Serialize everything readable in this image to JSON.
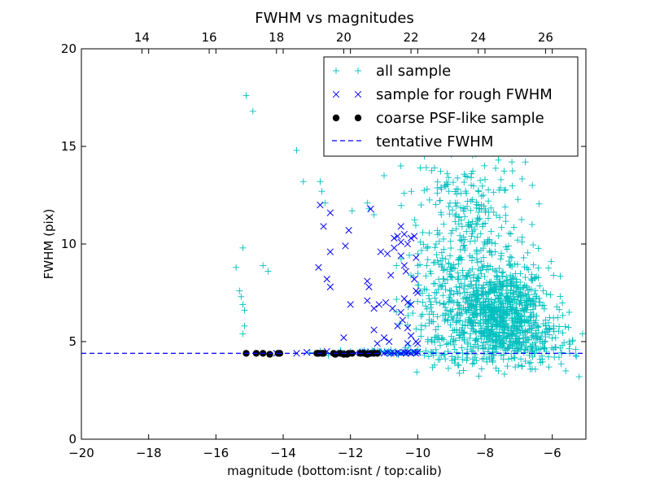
{
  "chart_data": {
    "type": "scatter",
    "title": "FWHM vs magnitudes",
    "xlabel": "magnitude (bottom:isnt / top:calib)",
    "ylabel": "FWHM (pix)",
    "xlim": [
      -20,
      -5
    ],
    "ylim": [
      0,
      20
    ],
    "top_xlim": [
      12.2,
      27.2
    ],
    "x_ticks": [
      -20,
      -18,
      -16,
      -14,
      -12,
      -10,
      -8,
      -6
    ],
    "x_tick_labels": [
      "−20",
      "−18",
      "−16",
      "−14",
      "−12",
      "−10",
      "−8",
      "−6"
    ],
    "top_x_ticks": [
      14,
      16,
      18,
      20,
      22,
      24,
      26
    ],
    "top_x_tick_labels": [
      "14",
      "16",
      "18",
      "20",
      "22",
      "24",
      "26"
    ],
    "y_ticks": [
      0,
      5,
      10,
      15,
      20
    ],
    "y_tick_labels": [
      "0",
      "5",
      "10",
      "15",
      "20"
    ],
    "grid": false,
    "legend_position": "top-right",
    "legend": [
      {
        "label": "all sample",
        "marker": "plus",
        "color": "#00bfbf"
      },
      {
        "label": "sample for rough FWHM",
        "marker": "x",
        "color": "#0000ff"
      },
      {
        "label": "coarse PSF-like sample",
        "marker": "dot",
        "color": "#000000"
      },
      {
        "label": "tentative FWHM",
        "marker": "dashed-line",
        "color": "#0000ff"
      }
    ],
    "tentative_fwhm": 4.4,
    "series": [
      {
        "name": "all sample",
        "marker": "plus",
        "color": "#00bfbf",
        "points": [
          [
            -15.1,
            17.6
          ],
          [
            -14.9,
            16.8
          ],
          [
            -15.2,
            9.8
          ],
          [
            -15.4,
            8.8
          ],
          [
            -15.3,
            7.6
          ],
          [
            -15.25,
            7.3
          ],
          [
            -15.2,
            6.9
          ],
          [
            -15.15,
            6.6
          ],
          [
            -15.15,
            5.8
          ],
          [
            -15.2,
            5.4
          ],
          [
            -14.6,
            8.9
          ],
          [
            -14.45,
            8.6
          ],
          [
            -13.6,
            14.8
          ],
          [
            -13.4,
            13.2
          ],
          [
            -12.9,
            13.2
          ],
          [
            -12.85,
            12.7
          ],
          [
            -12.75,
            12.1
          ],
          [
            -11.95,
            11.7
          ],
          [
            -11.5,
            12.1
          ],
          [
            -11.45,
            11.8
          ],
          [
            -11.3,
            11.5
          ],
          [
            -11.0,
            13.5
          ],
          [
            -10.6,
            14.8
          ],
          [
            -10.5,
            14.0
          ],
          [
            -10.4,
            12.6
          ],
          [
            -9.8,
            14.5
          ],
          [
            -9.5,
            13.9
          ],
          [
            -9.2,
            13.0
          ],
          [
            -8.8,
            12.8
          ],
          [
            -8.4,
            13.6
          ],
          [
            -8.0,
            13.3
          ],
          [
            -7.6,
            14.3
          ],
          [
            -7.2,
            14.2
          ],
          [
            -6.8,
            14.2
          ],
          [
            -9.9,
            12.0
          ],
          [
            -9.3,
            11.5
          ],
          [
            -8.6,
            11.8
          ],
          [
            -7.9,
            12.2
          ],
          [
            -7.4,
            11.9
          ],
          [
            -12.3,
            4.5
          ],
          [
            -12.0,
            4.5
          ],
          [
            -11.7,
            4.5
          ],
          [
            -11.3,
            4.5
          ],
          [
            -10.8,
            4.4
          ],
          [
            -10.3,
            4.4
          ],
          [
            -9.8,
            4.3
          ],
          [
            -9.3,
            4.3
          ],
          [
            -8.8,
            4.2
          ],
          [
            -8.3,
            4.2
          ],
          [
            -7.8,
            4.1
          ],
          [
            -7.3,
            4.1
          ],
          [
            -6.8,
            4.0
          ],
          [
            -6.3,
            4.1
          ],
          [
            -5.8,
            4.2
          ],
          [
            -5.3,
            4.3
          ],
          [
            -9.5,
            3.8
          ],
          [
            -8.9,
            3.9
          ],
          [
            -8.1,
            3.6
          ],
          [
            -7.6,
            3.5
          ],
          [
            -7.1,
            3.7
          ],
          [
            -6.6,
            3.6
          ],
          [
            -6.1,
            3.7
          ],
          [
            -5.6,
            3.5
          ],
          [
            -5.2,
            3.2
          ],
          [
            -5.1,
            5.4
          ],
          [
            -5.3,
            4.6
          ],
          [
            -8.4,
            10.4
          ],
          [
            -8.0,
            10.0
          ],
          [
            -7.7,
            9.6
          ],
          [
            -7.3,
            9.9
          ],
          [
            -6.9,
            10.1
          ],
          [
            -6.6,
            11.0
          ],
          [
            -6.5,
            7.6
          ],
          [
            -6.2,
            6.1
          ],
          [
            -5.9,
            5.2
          ],
          [
            -5.7,
            4.8
          ],
          [
            -5.5,
            5.0
          ],
          [
            -9.0,
            8.8
          ],
          [
            -9.7,
            9.2
          ],
          [
            -10.0,
            9.5
          ],
          [
            -10.2,
            8.4
          ],
          [
            -10.0,
            7.9
          ],
          [
            -9.9,
            6.3
          ],
          [
            -9.9,
            5.6
          ],
          [
            -9.7,
            5.0
          ],
          [
            -10.0,
            4.6
          ],
          [
            -9.6,
            6.9
          ],
          [
            -9.3,
            7.8
          ],
          [
            -9.1,
            6.1
          ],
          [
            -9.4,
            5.3
          ],
          [
            -9.1,
            4.9
          ],
          [
            -8.9,
            4.6
          ]
        ],
        "clusters": [
          {
            "cx": -7.6,
            "cy": 6.6,
            "sx": 0.75,
            "sy": 1.2,
            "n": 800
          },
          {
            "cx": -8.4,
            "cy": 9.3,
            "sx": 0.85,
            "sy": 2.0,
            "n": 220
          },
          {
            "cx": -7.0,
            "cy": 5.0,
            "sx": 0.8,
            "sy": 0.6,
            "n": 180
          },
          {
            "cx": -9.5,
            "cy": 6.5,
            "sx": 0.5,
            "sy": 1.6,
            "n": 90
          },
          {
            "cx": -8.5,
            "cy": 12.2,
            "sx": 0.8,
            "sy": 1.0,
            "n": 90
          },
          {
            "cx": -10.8,
            "cy": 4.45,
            "sx": 0.9,
            "sy": 0.06,
            "n": 60
          }
        ]
      },
      {
        "name": "sample for rough FWHM",
        "marker": "x",
        "color": "#0000ff",
        "points": [
          [
            -12.9,
            12.0
          ],
          [
            -12.6,
            11.6
          ],
          [
            -12.8,
            10.9
          ],
          [
            -12.95,
            8.8
          ],
          [
            -12.7,
            8.2
          ],
          [
            -12.6,
            7.8
          ],
          [
            -12.6,
            9.6
          ],
          [
            -12.15,
            9.9
          ],
          [
            -12.05,
            10.7
          ],
          [
            -12.0,
            6.9
          ],
          [
            -12.2,
            5.2
          ],
          [
            -12.7,
            4.5
          ],
          [
            -11.4,
            11.8
          ],
          [
            -11.5,
            8.1
          ],
          [
            -11.45,
            7.8
          ],
          [
            -11.5,
            7.1
          ],
          [
            -11.3,
            6.7
          ],
          [
            -11.3,
            5.6
          ],
          [
            -11.15,
            6.9
          ],
          [
            -11.1,
            9.6
          ],
          [
            -10.9,
            9.5
          ],
          [
            -10.8,
            8.4
          ],
          [
            -10.75,
            6.7
          ],
          [
            -10.6,
            5.8
          ],
          [
            -10.7,
            9.8
          ],
          [
            -10.7,
            10.3
          ],
          [
            -10.6,
            10.4
          ],
          [
            -10.5,
            10.9
          ],
          [
            -10.5,
            9.4
          ],
          [
            -10.4,
            10.5
          ],
          [
            -10.3,
            10.0
          ],
          [
            -10.2,
            10.3
          ],
          [
            -10.1,
            10.4
          ],
          [
            -10.5,
            10.1
          ],
          [
            -10.4,
            8.9
          ],
          [
            -10.4,
            7.2
          ],
          [
            -10.3,
            7.0
          ],
          [
            -10.2,
            6.9
          ],
          [
            -10.1,
            8.2
          ],
          [
            -10.05,
            7.6
          ],
          [
            -10.0,
            7.5
          ],
          [
            -10.3,
            5.7
          ],
          [
            -10.2,
            5.3
          ],
          [
            -10.05,
            5.0
          ],
          [
            -10.0,
            4.9
          ],
          [
            -10.5,
            6.5
          ],
          [
            -11.0,
            5.2
          ],
          [
            -10.85,
            5.0
          ],
          [
            -10.3,
            4.9
          ],
          [
            -10.95,
            7.0
          ],
          [
            -11.2,
            4.9
          ],
          [
            -10.35,
            8.6
          ],
          [
            -10.05,
            9.3
          ],
          [
            -10.45,
            6.1
          ],
          [
            -14.2,
            4.4
          ],
          [
            -13.6,
            4.4
          ],
          [
            -13.3,
            4.45
          ],
          [
            -12.9,
            4.4
          ],
          [
            -12.45,
            4.4
          ],
          [
            -12.1,
            4.4
          ],
          [
            -11.85,
            4.4
          ],
          [
            -11.55,
            4.45
          ],
          [
            -11.2,
            4.45
          ],
          [
            -11.0,
            4.4
          ],
          [
            -10.9,
            4.45
          ],
          [
            -10.8,
            4.4
          ],
          [
            -10.7,
            4.4
          ],
          [
            -10.6,
            4.45
          ],
          [
            -10.5,
            4.4
          ],
          [
            -10.4,
            4.45
          ],
          [
            -10.35,
            4.4
          ],
          [
            -10.3,
            4.45
          ],
          [
            -10.2,
            4.4
          ],
          [
            -10.1,
            4.45
          ],
          [
            -10.05,
            4.4
          ],
          [
            -10.0,
            4.45
          ],
          [
            -11.3,
            4.4
          ],
          [
            -11.65,
            4.45
          ]
        ]
      },
      {
        "name": "coarse PSF-like sample",
        "marker": "dot",
        "color": "#000000",
        "points": [
          [
            -15.1,
            4.4
          ],
          [
            -14.8,
            4.4
          ],
          [
            -14.6,
            4.4
          ],
          [
            -14.4,
            4.35
          ],
          [
            -14.15,
            4.4
          ],
          [
            -14.1,
            4.4
          ],
          [
            -13.0,
            4.4
          ],
          [
            -12.95,
            4.4
          ],
          [
            -12.85,
            4.4
          ],
          [
            -12.8,
            4.4
          ],
          [
            -12.5,
            4.4
          ],
          [
            -12.45,
            4.35
          ],
          [
            -12.3,
            4.4
          ],
          [
            -12.2,
            4.35
          ],
          [
            -12.1,
            4.35
          ],
          [
            -12.05,
            4.4
          ],
          [
            -11.95,
            4.4
          ],
          [
            -11.7,
            4.4
          ],
          [
            -11.6,
            4.4
          ],
          [
            -11.5,
            4.35
          ],
          [
            -11.4,
            4.4
          ],
          [
            -11.3,
            4.4
          ],
          [
            -11.2,
            4.4
          ]
        ]
      }
    ]
  }
}
